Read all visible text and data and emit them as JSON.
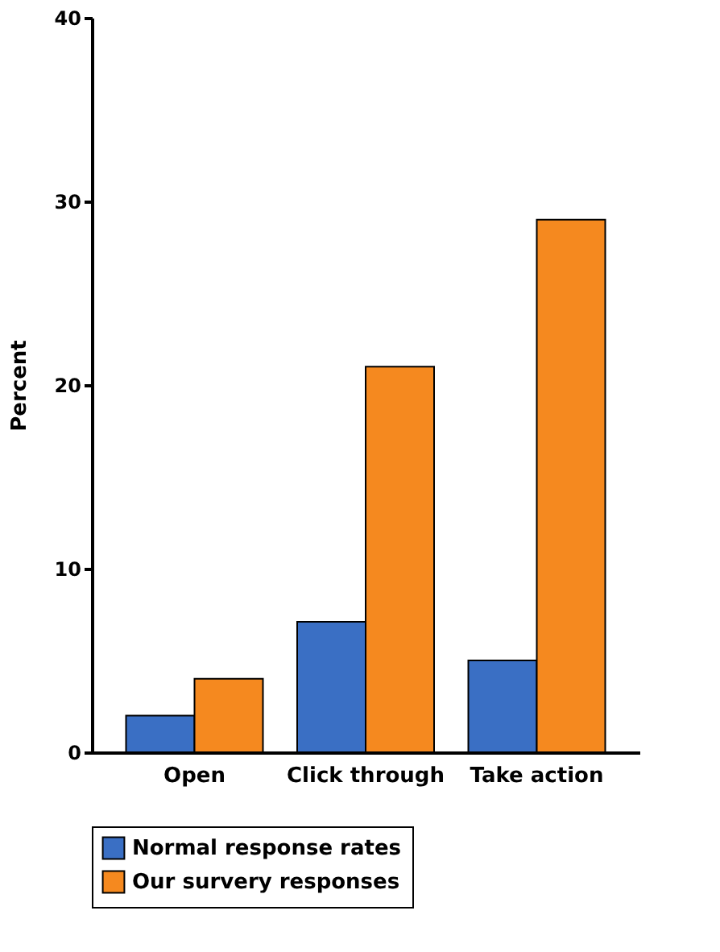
{
  "chart_data": {
    "type": "bar",
    "ylabel": "Percent",
    "categories": [
      "Open",
      "Click through",
      "Take action"
    ],
    "series": [
      {
        "name": "Normal response rates",
        "color": "#3a6fc4",
        "values": [
          2,
          7.1,
          5
        ]
      },
      {
        "name": "Our survery responses",
        "color": "#f5891f",
        "values": [
          4,
          21,
          29
        ]
      }
    ],
    "ylim": [
      0,
      40
    ],
    "yticks": [
      0,
      10,
      20,
      30,
      40
    ],
    "grid": false,
    "legend": "bottom"
  }
}
